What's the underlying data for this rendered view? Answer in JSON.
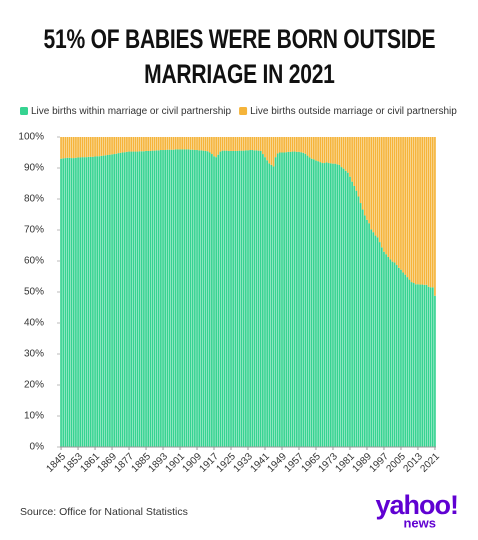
{
  "chart_data": {
    "type": "stacked_bar",
    "title": "51% OF BABIES WERE BORN OUTSIDE MARRIAGE IN 2021",
    "source": "Source: Office for National Statistics",
    "x": [
      1845,
      1846,
      1847,
      1848,
      1849,
      1850,
      1851,
      1852,
      1853,
      1854,
      1855,
      1856,
      1857,
      1858,
      1859,
      1860,
      1861,
      1862,
      1863,
      1864,
      1865,
      1866,
      1867,
      1868,
      1869,
      1870,
      1871,
      1872,
      1873,
      1874,
      1875,
      1876,
      1877,
      1878,
      1879,
      1880,
      1881,
      1882,
      1883,
      1884,
      1885,
      1886,
      1887,
      1888,
      1889,
      1890,
      1891,
      1892,
      1893,
      1894,
      1895,
      1896,
      1897,
      1898,
      1899,
      1900,
      1901,
      1902,
      1903,
      1904,
      1905,
      1906,
      1907,
      1908,
      1909,
      1910,
      1911,
      1912,
      1913,
      1914,
      1915,
      1916,
      1917,
      1918,
      1919,
      1920,
      1921,
      1922,
      1923,
      1924,
      1925,
      1926,
      1927,
      1928,
      1929,
      1930,
      1931,
      1932,
      1933,
      1934,
      1935,
      1936,
      1937,
      1938,
      1939,
      1940,
      1941,
      1942,
      1943,
      1944,
      1945,
      1946,
      1947,
      1948,
      1949,
      1950,
      1951,
      1952,
      1953,
      1954,
      1955,
      1956,
      1957,
      1958,
      1959,
      1960,
      1961,
      1962,
      1963,
      1964,
      1965,
      1966,
      1967,
      1968,
      1969,
      1970,
      1971,
      1972,
      1973,
      1974,
      1975,
      1976,
      1977,
      1978,
      1979,
      1980,
      1981,
      1982,
      1983,
      1984,
      1985,
      1986,
      1987,
      1988,
      1989,
      1990,
      1991,
      1992,
      1993,
      1994,
      1995,
      1996,
      1997,
      1998,
      1999,
      2000,
      2001,
      2002,
      2003,
      2004,
      2005,
      2006,
      2007,
      2008,
      2009,
      2010,
      2011,
      2012,
      2013,
      2014,
      2015,
      2016,
      2017,
      2018,
      2019,
      2020,
      2021
    ],
    "xlim": [
      1844.5,
      2021.5
    ],
    "xticks": [
      1845,
      1853,
      1861,
      1869,
      1877,
      1885,
      1893,
      1901,
      1909,
      1917,
      1925,
      1933,
      1941,
      1949,
      1957,
      1965,
      1973,
      1981,
      1989,
      1997,
      2005,
      2013,
      2021
    ],
    "ylim": [
      0,
      100
    ],
    "yticks": [
      {
        "value": 0,
        "label": "0%"
      },
      {
        "value": 10,
        "label": "10%"
      },
      {
        "value": 20,
        "label": "20%"
      },
      {
        "value": 30,
        "label": "30%"
      },
      {
        "value": 40,
        "label": "40%"
      },
      {
        "value": 50,
        "label": "50%"
      },
      {
        "value": 60,
        "label": "60%"
      },
      {
        "value": 70,
        "label": "70%"
      },
      {
        "value": 80,
        "label": "80%"
      },
      {
        "value": 90,
        "label": "90%"
      },
      {
        "value": 100,
        "label": "100%"
      }
    ],
    "series": [
      {
        "name": "Live births within marriage or civil partnership",
        "color": "#36d391",
        "values": [
          93.0,
          93.1,
          93.2,
          93.3,
          93.3,
          93.2,
          93.2,
          93.3,
          93.4,
          93.4,
          93.5,
          93.5,
          93.5,
          93.6,
          93.6,
          93.6,
          93.7,
          93.8,
          93.8,
          93.9,
          94.0,
          94.1,
          94.2,
          94.3,
          94.4,
          94.5,
          94.6,
          94.8,
          94.9,
          95.0,
          95.1,
          95.2,
          95.3,
          95.3,
          95.3,
          95.3,
          95.3,
          95.4,
          95.4,
          95.4,
          95.5,
          95.5,
          95.5,
          95.6,
          95.6,
          95.7,
          95.7,
          95.8,
          95.8,
          95.8,
          95.9,
          95.9,
          95.9,
          95.9,
          96.0,
          96.0,
          96.0,
          96.0,
          96.0,
          96.0,
          96.0,
          95.9,
          95.9,
          95.8,
          95.8,
          95.7,
          95.7,
          95.6,
          95.5,
          95.4,
          95.0,
          94.5,
          93.8,
          93.5,
          94.3,
          95.3,
          95.6,
          95.6,
          95.6,
          95.5,
          95.5,
          95.5,
          95.5,
          95.5,
          95.6,
          95.6,
          95.6,
          95.7,
          95.7,
          95.8,
          95.8,
          95.7,
          95.7,
          95.6,
          95.5,
          94.5,
          93.5,
          92.5,
          91.5,
          91.0,
          90.5,
          93.5,
          94.7,
          95.0,
          95.0,
          95.0,
          95.1,
          95.2,
          95.2,
          95.3,
          95.3,
          95.2,
          95.2,
          95.1,
          94.9,
          94.6,
          94.0,
          93.4,
          93.0,
          92.8,
          92.4,
          92.2,
          91.9,
          91.6,
          91.6,
          91.8,
          91.6,
          91.5,
          91.4,
          91.4,
          91.2,
          91.0,
          90.3,
          89.8,
          89.1,
          88.5,
          87.2,
          85.6,
          84.2,
          82.7,
          80.8,
          78.7,
          76.6,
          74.7,
          73.3,
          72.2,
          70.2,
          69.3,
          68.2,
          67.6,
          66.1,
          64.4,
          63.0,
          62.2,
          61.3,
          60.5,
          59.8,
          59.5,
          58.7,
          57.8,
          57.2,
          56.3,
          55.6,
          54.8,
          54.0,
          53.2,
          52.9,
          52.5,
          52.5,
          52.4,
          52.4,
          52.3,
          52.3,
          51.7,
          51.5,
          51.5,
          48.8
        ]
      },
      {
        "name": "Live births outside marriage or civil partnership",
        "color": "#f5b43a",
        "values": [
          7.0,
          6.9,
          6.8,
          6.7,
          6.7,
          6.8,
          6.8,
          6.7,
          6.6,
          6.6,
          6.5,
          6.5,
          6.5,
          6.4,
          6.4,
          6.4,
          6.3,
          6.2,
          6.2,
          6.1,
          6.0,
          5.9,
          5.8,
          5.7,
          5.6,
          5.5,
          5.4,
          5.2,
          5.1,
          5.0,
          4.9,
          4.8,
          4.7,
          4.7,
          4.7,
          4.7,
          4.7,
          4.6,
          4.6,
          4.6,
          4.5,
          4.5,
          4.5,
          4.4,
          4.4,
          4.3,
          4.3,
          4.2,
          4.2,
          4.2,
          4.1,
          4.1,
          4.1,
          4.1,
          4.0,
          4.0,
          4.0,
          4.0,
          4.0,
          4.0,
          4.0,
          4.1,
          4.1,
          4.2,
          4.2,
          4.3,
          4.3,
          4.4,
          4.5,
          4.6,
          5.0,
          5.5,
          6.2,
          6.5,
          5.7,
          4.7,
          4.4,
          4.4,
          4.4,
          4.5,
          4.5,
          4.5,
          4.5,
          4.5,
          4.4,
          4.4,
          4.4,
          4.3,
          4.3,
          4.2,
          4.2,
          4.3,
          4.3,
          4.4,
          4.5,
          5.5,
          6.5,
          7.5,
          8.5,
          9.0,
          9.5,
          6.5,
          5.3,
          5.0,
          5.0,
          5.0,
          4.9,
          4.8,
          4.8,
          4.7,
          4.7,
          4.8,
          4.8,
          4.9,
          5.1,
          5.4,
          6.0,
          6.6,
          7.0,
          7.2,
          7.6,
          7.8,
          8.1,
          8.4,
          8.4,
          8.2,
          8.4,
          8.5,
          8.6,
          8.6,
          8.8,
          9.0,
          9.7,
          10.2,
          10.9,
          11.5,
          12.8,
          14.4,
          15.8,
          17.3,
          19.2,
          21.3,
          23.4,
          25.3,
          26.7,
          27.8,
          29.8,
          30.7,
          31.8,
          32.4,
          33.9,
          35.6,
          37.0,
          37.8,
          38.7,
          39.5,
          40.2,
          40.5,
          41.3,
          42.2,
          42.8,
          43.7,
          44.4,
          45.2,
          46.0,
          46.8,
          47.1,
          47.5,
          47.5,
          47.6,
          47.6,
          47.7,
          47.7,
          48.3,
          48.5,
          48.5,
          51.2
        ]
      }
    ]
  },
  "logo": {
    "name": "yahoo!",
    "sub": "news"
  }
}
